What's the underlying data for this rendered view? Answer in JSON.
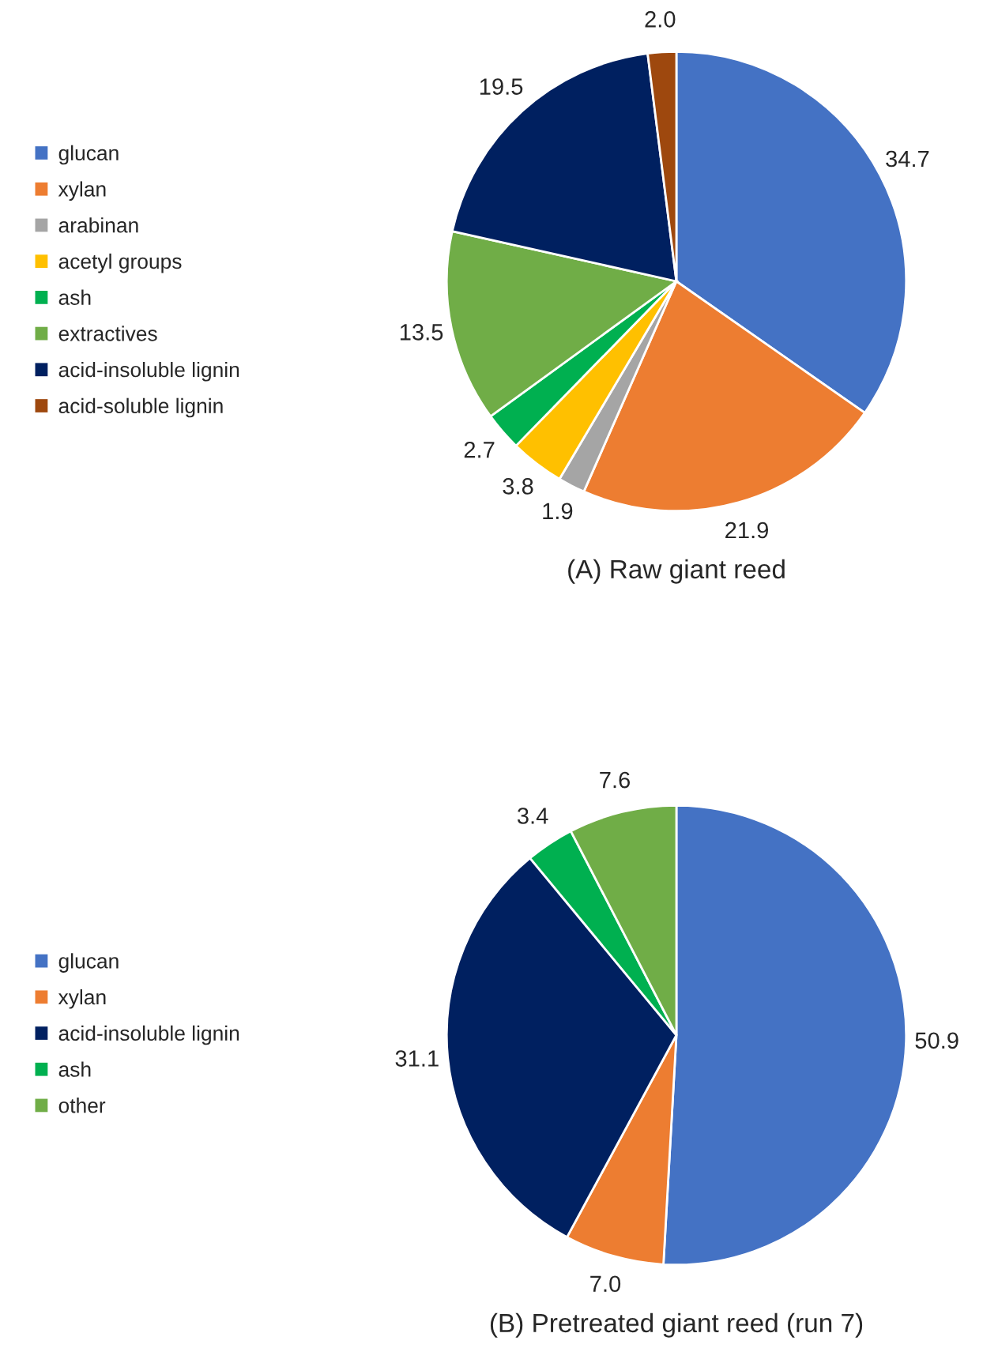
{
  "chart_data": [
    {
      "type": "pie",
      "title": "(A) Raw giant reed",
      "categories": [
        "glucan",
        "xylan",
        "arabinan",
        "acetyl groups",
        "ash",
        "extractives",
        "acid-insoluble lignin",
        "acid-soluble lignin"
      ],
      "values": [
        34.7,
        21.9,
        1.9,
        3.8,
        2.7,
        13.5,
        19.5,
        2.0
      ],
      "value_labels": [
        "34.7",
        "21.9",
        "1.9",
        "3.8",
        "2.7",
        "13.5",
        "19.5",
        "2.0"
      ],
      "colors": [
        "#4472c4",
        "#ed7d31",
        "#a5a5a5",
        "#ffc000",
        "#00b050",
        "#70ad47",
        "#002060",
        "#9e480e"
      ],
      "data_labels": true,
      "legend": "left"
    },
    {
      "type": "pie",
      "title": "(B) Pretreated giant reed (run 7)",
      "categories": [
        "glucan",
        "xylan",
        "acid-insoluble lignin",
        "ash",
        "other"
      ],
      "values": [
        50.9,
        7.0,
        31.1,
        3.4,
        7.6
      ],
      "value_labels": [
        "50.9",
        "7.0",
        "31.1",
        "3.4",
        "7.6"
      ],
      "colors": [
        "#4472c4",
        "#ed7d31",
        "#002060",
        "#00b050",
        "#70ad47"
      ],
      "data_labels": true,
      "legend": "left"
    }
  ]
}
